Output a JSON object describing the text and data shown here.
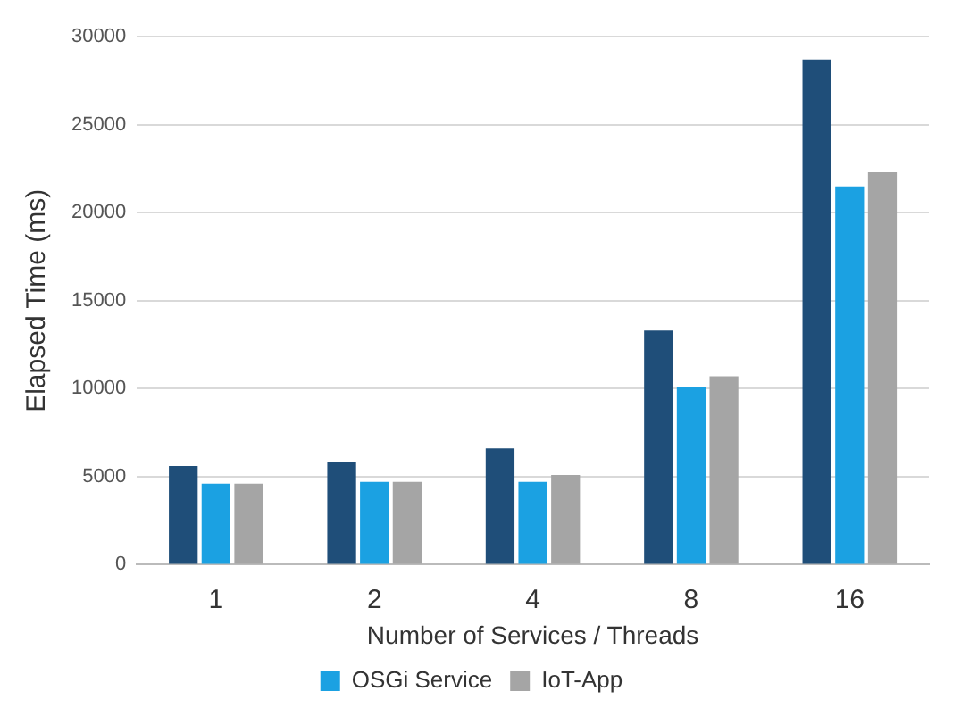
{
  "chart_data": {
    "type": "bar",
    "xlabel": "Number of Services / Threads",
    "ylabel": "Elapsed Time (ms)",
    "categories": [
      "1",
      "2",
      "4",
      "8",
      "16"
    ],
    "series": [
      {
        "color": "#1f4e79",
        "values": [
          5600,
          5800,
          6600,
          13300,
          28700
        ]
      },
      {
        "name": "OSGi Service",
        "color": "#1ba1e2",
        "values": [
          4600,
          4700,
          4700,
          10100,
          21500
        ]
      },
      {
        "name": "IoT-App",
        "color": "#a5a5a5",
        "values": [
          4600,
          4700,
          5100,
          10700,
          22300
        ]
      }
    ],
    "ylim": [
      0,
      30000
    ],
    "yticks": [
      0,
      5000,
      10000,
      15000,
      20000,
      25000,
      30000
    ],
    "grid": "y",
    "legend": "bottom"
  }
}
